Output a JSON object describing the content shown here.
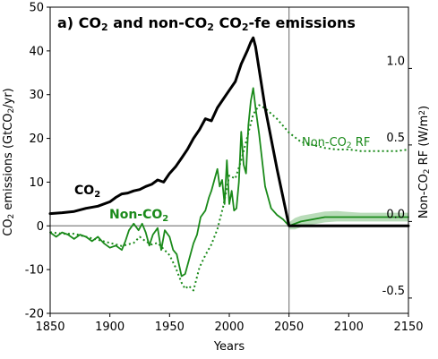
{
  "chart_data": {
    "type": "line",
    "title": "a) CO₂ and non-CO₂ CO₂-fe emissions",
    "xlabel": "Years",
    "ylabel": "CO₂ emissions (GtCO₂/yr)",
    "y2label": "Non-CO₂ RF (W/m²)",
    "xlim": [
      1850,
      2150
    ],
    "ylim": [
      -20,
      50
    ],
    "y2lim": [
      -0.6,
      1.4
    ],
    "xticks": [
      1850,
      1900,
      1950,
      2000,
      2050,
      2100,
      2150
    ],
    "yticks": [
      -20,
      -10,
      0,
      10,
      20,
      30,
      40,
      50
    ],
    "y2ticks": [
      -0.5,
      0.0,
      0.5,
      1.0
    ],
    "y2tick_labels": [
      "-0.5",
      "0.0",
      "0.5",
      "1.0"
    ],
    "vline_year": 2050,
    "hline_value": 0,
    "annotations": {
      "co2": "CO₂",
      "nonco2": "Non-CO₂",
      "rf": "Non-CO₂ RF"
    },
    "colors": {
      "co2": "#000000",
      "nonco2": "#1a8a1a",
      "band": "#7fbf7f",
      "ref": "#808080"
    },
    "series": [
      {
        "name": "CO₂",
        "axis": "left",
        "style": "solid-thick",
        "x": [
          1850,
          1860,
          1870,
          1880,
          1890,
          1900,
          1905,
          1910,
          1915,
          1920,
          1925,
          1930,
          1935,
          1940,
          1945,
          1950,
          1955,
          1960,
          1965,
          1970,
          1975,
          1980,
          1985,
          1990,
          1995,
          2000,
          2005,
          2010,
          2015,
          2018,
          2020,
          2022,
          2030,
          2040,
          2050,
          2060,
          2070,
          2080,
          2090,
          2100,
          2110,
          2120,
          2130,
          2140,
          2150
        ],
        "y": [
          2.8,
          3.0,
          3.3,
          4.0,
          4.5,
          5.5,
          6.5,
          7.3,
          7.5,
          8.0,
          8.3,
          9.0,
          9.5,
          10.5,
          10.0,
          12.0,
          13.5,
          15.5,
          17.5,
          20.0,
          22.0,
          24.5,
          24.0,
          27.0,
          29.0,
          31.0,
          33.0,
          37.0,
          40.0,
          42.0,
          43.0,
          41.0,
          27.0,
          13.0,
          0.0,
          0.0,
          0.0,
          0.0,
          0.0,
          0.0,
          0.0,
          0.0,
          0.0,
          0.0,
          0.0
        ]
      },
      {
        "name": "Non-CO₂",
        "axis": "left",
        "style": "solid",
        "x": [
          1850,
          1855,
          1860,
          1865,
          1870,
          1875,
          1880,
          1885,
          1890,
          1895,
          1900,
          1905,
          1910,
          1913,
          1916,
          1920,
          1924,
          1927,
          1930,
          1933,
          1936,
          1940,
          1943,
          1946,
          1950,
          1953,
          1956,
          1960,
          1963,
          1966,
          1970,
          1973,
          1976,
          1980,
          1983,
          1985,
          1987,
          1990,
          1992,
          1994,
          1996,
          1998,
          2000,
          2002,
          2004,
          2006,
          2008,
          2010,
          2012,
          2014,
          2016,
          2018,
          2020,
          2022,
          2025,
          2030,
          2035,
          2040,
          2045,
          2050,
          2055,
          2060,
          2070,
          2080,
          2090,
          2100,
          2110,
          2120,
          2130,
          2140,
          2150
        ],
        "y": [
          -1.5,
          -2.5,
          -1.5,
          -2.0,
          -3.0,
          -2.0,
          -2.5,
          -3.5,
          -2.5,
          -4.0,
          -5.0,
          -4.5,
          -5.5,
          -3.5,
          -1.0,
          0.5,
          -1.0,
          0.5,
          -1.5,
          -4.5,
          -2.0,
          -0.5,
          -5.5,
          -1.0,
          -2.5,
          -5.5,
          -6.5,
          -11.5,
          -11.0,
          -8.0,
          -4.0,
          -2.0,
          2.0,
          3.5,
          6.5,
          8.0,
          10.0,
          13.0,
          9.0,
          10.5,
          5.0,
          15.0,
          5.0,
          8.0,
          3.5,
          4.0,
          10.0,
          21.5,
          14.0,
          12.0,
          23.0,
          28.5,
          31.5,
          27.0,
          21.0,
          9.0,
          4.0,
          2.5,
          1.5,
          0.0,
          0.5,
          1.0,
          1.5,
          2.0,
          2.0,
          2.0,
          2.0,
          2.0,
          2.0,
          2.0,
          2.0
        ]
      },
      {
        "name": "Non-CO₂ RF",
        "axis": "right",
        "style": "dotted",
        "x": [
          1850,
          1860,
          1870,
          1880,
          1890,
          1900,
          1910,
          1920,
          1925,
          1930,
          1935,
          1940,
          1945,
          1950,
          1955,
          1960,
          1963,
          1966,
          1970,
          1975,
          1980,
          1985,
          1990,
          1995,
          2000,
          2005,
          2010,
          2015,
          2020,
          2025,
          2030,
          2040,
          2050,
          2060,
          2070,
          2080,
          2090,
          2100,
          2110,
          2120,
          2130,
          2140,
          2150
        ],
        "y": [
          -0.07,
          -0.08,
          -0.08,
          -0.1,
          -0.12,
          -0.14,
          -0.16,
          -0.14,
          -0.1,
          -0.13,
          -0.15,
          -0.14,
          -0.18,
          -0.22,
          -0.3,
          -0.4,
          -0.44,
          -0.42,
          -0.45,
          -0.3,
          -0.22,
          -0.15,
          -0.05,
          0.1,
          0.3,
          0.28,
          0.4,
          0.55,
          0.7,
          0.76,
          0.74,
          0.67,
          0.58,
          0.52,
          0.5,
          0.48,
          0.47,
          0.47,
          0.46,
          0.46,
          0.46,
          0.46,
          0.47
        ]
      }
    ],
    "band": {
      "x": [
        2050,
        2055,
        2060,
        2070,
        2080,
        2090,
        2100,
        2110,
        2120,
        2130,
        2140,
        2150
      ],
      "lower": [
        -0.8,
        -0.8,
        -0.3,
        0.3,
        0.8,
        1.0,
        1.0,
        1.0,
        1.0,
        1.0,
        1.0,
        1.0
      ],
      "upper": [
        0.8,
        1.8,
        2.3,
        2.8,
        3.3,
        3.4,
        3.2,
        3.0,
        3.0,
        3.0,
        3.0,
        3.0
      ]
    }
  }
}
